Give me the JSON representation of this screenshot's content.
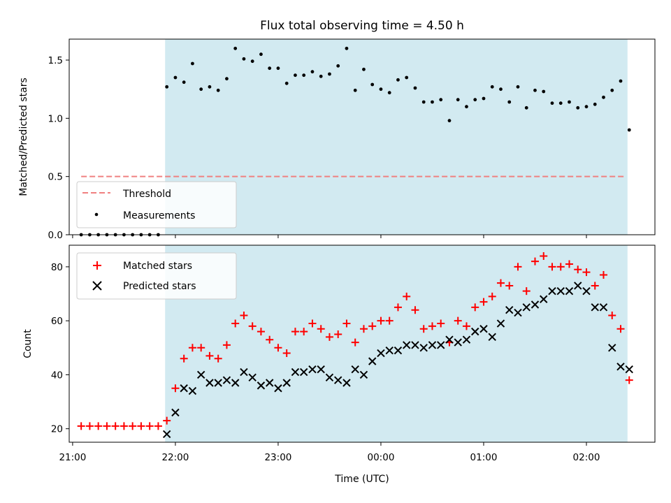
{
  "chart_data": [
    {
      "type": "scatter",
      "title": "Flux total observing time = 4.50 h",
      "xlabel": "",
      "ylabel": "Matched/Predicted stars",
      "ylim": [
        0,
        1.68
      ],
      "xlim": [
        "20:58",
        "02:40"
      ],
      "yticks": [
        0.0,
        0.5,
        1.0,
        1.5
      ],
      "ytick_labels": [
        "0.0",
        "0.5",
        "1.0",
        "1.5"
      ],
      "shaded_span": [
        "21:54",
        "02:24"
      ],
      "shaded_color": "#add8e6",
      "legend_position": "lower-left",
      "threshold": {
        "name": "Threshold",
        "value": 0.5,
        "x_range": [
          "21:05",
          "02:22"
        ],
        "color": "#f08080",
        "style": "dashed"
      },
      "series": [
        {
          "name": "Measurements",
          "color": "#000000",
          "marker": "dot",
          "x": [
            "21:05",
            "21:10",
            "21:15",
            "21:20",
            "21:25",
            "21:30",
            "21:35",
            "21:40",
            "21:45",
            "21:50",
            "21:55",
            "22:00",
            "22:05",
            "22:10",
            "22:15",
            "22:20",
            "22:25",
            "22:30",
            "22:35",
            "22:40",
            "22:45",
            "22:50",
            "22:55",
            "23:00",
            "23:05",
            "23:10",
            "23:15",
            "23:20",
            "23:25",
            "23:30",
            "23:35",
            "23:40",
            "23:45",
            "23:50",
            "23:55",
            "00:00",
            "00:05",
            "00:10",
            "00:15",
            "00:20",
            "00:25",
            "00:30",
            "00:35",
            "00:40",
            "00:45",
            "00:50",
            "00:55",
            "01:00",
            "01:05",
            "01:10",
            "01:15",
            "01:20",
            "01:25",
            "01:30",
            "01:35",
            "01:40",
            "01:45",
            "01:50",
            "01:55",
            "02:00",
            "02:05",
            "02:10",
            "02:15",
            "02:20",
            "02:25"
          ],
          "y": [
            0,
            0,
            0,
            0,
            0,
            0,
            0,
            0,
            0,
            0,
            1.27,
            1.35,
            1.31,
            1.47,
            1.25,
            1.27,
            1.24,
            1.34,
            1.6,
            1.51,
            1.49,
            1.55,
            1.43,
            1.43,
            1.3,
            1.37,
            1.37,
            1.4,
            1.36,
            1.38,
            1.45,
            1.6,
            1.24,
            1.42,
            1.29,
            1.25,
            1.22,
            1.33,
            1.35,
            1.26,
            1.14,
            1.14,
            1.16,
            0.98,
            1.16,
            1.1,
            1.16,
            1.17,
            1.27,
            1.25,
            1.14,
            1.27,
            1.09,
            1.24,
            1.23,
            1.13,
            1.13,
            1.14,
            1.09,
            1.1,
            1.12,
            1.18,
            1.24,
            1.32,
            0.9
          ]
        }
      ]
    },
    {
      "type": "scatter",
      "title": "",
      "xlabel": "Time (UTC)",
      "ylabel": "Count",
      "ylim": [
        15,
        88
      ],
      "xlim": [
        "20:58",
        "02:40"
      ],
      "xticks": [
        "21:00",
        "22:00",
        "23:00",
        "00:00",
        "01:00",
        "02:00"
      ],
      "yticks": [
        20,
        40,
        60,
        80
      ],
      "shaded_span": [
        "21:54",
        "02:24"
      ],
      "shaded_color": "#add8e6",
      "legend_position": "upper-left",
      "series": [
        {
          "name": "Matched stars",
          "color": "#ff0000",
          "marker": "plus",
          "x": [
            "21:05",
            "21:10",
            "21:15",
            "21:20",
            "21:25",
            "21:30",
            "21:35",
            "21:40",
            "21:45",
            "21:50",
            "21:55",
            "22:00",
            "22:05",
            "22:10",
            "22:15",
            "22:20",
            "22:25",
            "22:30",
            "22:35",
            "22:40",
            "22:45",
            "22:50",
            "22:55",
            "23:00",
            "23:05",
            "23:10",
            "23:15",
            "23:20",
            "23:25",
            "23:30",
            "23:35",
            "23:40",
            "23:45",
            "23:50",
            "23:55",
            "00:00",
            "00:05",
            "00:10",
            "00:15",
            "00:20",
            "00:25",
            "00:30",
            "00:35",
            "00:40",
            "00:45",
            "00:50",
            "00:55",
            "01:00",
            "01:05",
            "01:10",
            "01:15",
            "01:20",
            "01:25",
            "01:30",
            "01:35",
            "01:40",
            "01:45",
            "01:50",
            "01:55",
            "02:00",
            "02:05",
            "02:10",
            "02:15",
            "02:20",
            "02:25"
          ],
          "y": [
            21,
            21,
            21,
            21,
            21,
            21,
            21,
            21,
            21,
            21,
            23,
            35,
            46,
            50,
            50,
            47,
            46,
            51,
            59,
            62,
            58,
            56,
            53,
            50,
            48,
            56,
            56,
            59,
            57,
            54,
            55,
            59,
            52,
            57,
            58,
            60,
            60,
            65,
            69,
            64,
            57,
            58,
            59,
            52,
            60,
            58,
            65,
            67,
            69,
            74,
            73,
            80,
            71,
            82,
            84,
            80,
            80,
            81,
            79,
            78,
            73,
            77,
            62,
            57,
            38
          ]
        },
        {
          "name": "Predicted stars",
          "color": "#000000",
          "marker": "cross",
          "x": [
            "21:55",
            "22:00",
            "22:05",
            "22:10",
            "22:15",
            "22:20",
            "22:25",
            "22:30",
            "22:35",
            "22:40",
            "22:45",
            "22:50",
            "22:55",
            "23:00",
            "23:05",
            "23:10",
            "23:15",
            "23:20",
            "23:25",
            "23:30",
            "23:35",
            "23:40",
            "23:45",
            "23:50",
            "23:55",
            "00:00",
            "00:05",
            "00:10",
            "00:15",
            "00:20",
            "00:25",
            "00:30",
            "00:35",
            "00:40",
            "00:45",
            "00:50",
            "00:55",
            "01:00",
            "01:05",
            "01:10",
            "01:15",
            "01:20",
            "01:25",
            "01:30",
            "01:35",
            "01:40",
            "01:45",
            "01:50",
            "01:55",
            "02:00",
            "02:05",
            "02:10",
            "02:15",
            "02:20",
            "02:25"
          ],
          "y": [
            18,
            26,
            35,
            34,
            40,
            37,
            37,
            38,
            37,
            41,
            39,
            36,
            37,
            35,
            37,
            41,
            41,
            42,
            42,
            39,
            38,
            37,
            42,
            40,
            45,
            48,
            49,
            49,
            51,
            51,
            50,
            51,
            51,
            53,
            52,
            53,
            56,
            57,
            54,
            59,
            64,
            63,
            65,
            66,
            68,
            71,
            71,
            71,
            73,
            71,
            65,
            65,
            50,
            43,
            42
          ]
        }
      ]
    }
  ]
}
